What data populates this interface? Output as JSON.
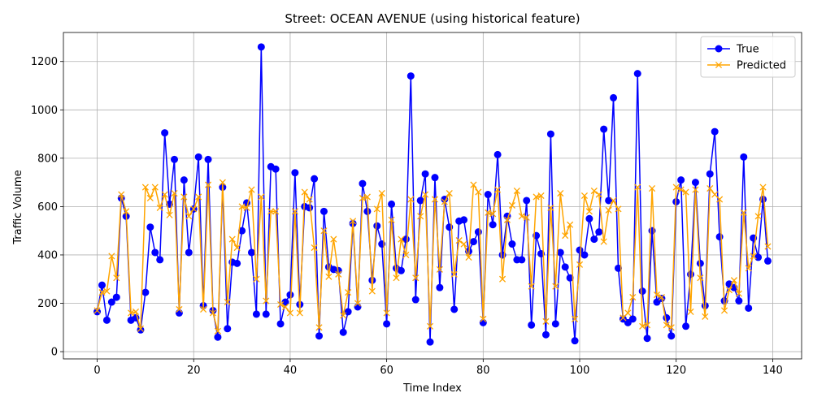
{
  "chart_data": {
    "type": "line",
    "title": "Street: OCEAN AVENUE (using historical feature)",
    "xlabel": "Time Index",
    "ylabel": "Traffic Volume",
    "xlim": [
      -7,
      146
    ],
    "ylim": [
      -30,
      1320
    ],
    "xticks": [
      0,
      20,
      40,
      60,
      80,
      100,
      120,
      140
    ],
    "yticks": [
      0,
      200,
      400,
      600,
      800,
      1000,
      1200
    ],
    "grid": true,
    "legend_position": "top-right",
    "series": [
      {
        "name": "True",
        "color": "#0000ff",
        "marker": "circle",
        "values": [
          165,
          275,
          130,
          205,
          225,
          635,
          560,
          130,
          140,
          90,
          245,
          515,
          410,
          380,
          905,
          610,
          795,
          160,
          710,
          410,
          590,
          805,
          190,
          795,
          170,
          60,
          680,
          95,
          370,
          365,
          500,
          615,
          410,
          155,
          1260,
          155,
          765,
          755,
          115,
          205,
          235,
          740,
          195,
          600,
          595,
          715,
          65,
          580,
          350,
          340,
          335,
          80,
          165,
          530,
          185,
          695,
          580,
          295,
          520,
          445,
          115,
          610,
          345,
          335,
          465,
          1140,
          215,
          625,
          735,
          40,
          720,
          265,
          630,
          515,
          175,
          540,
          545,
          415,
          455,
          495,
          120,
          650,
          525,
          815,
          400,
          560,
          445,
          380,
          380,
          625,
          110,
          480,
          405,
          70,
          900,
          115,
          410,
          350,
          305,
          45,
          420,
          400,
          550,
          465,
          495,
          920,
          625,
          1050,
          345,
          135,
          120,
          135,
          1150,
          250,
          55,
          500,
          205,
          220,
          140,
          65,
          620,
          710,
          105,
          320,
          700,
          365,
          190,
          735,
          910,
          475,
          210,
          280,
          265,
          210,
          805,
          180,
          470,
          390,
          630,
          375
        ]
      },
      {
        "name": "Predicted",
        "color": "#ffa500",
        "marker": "x",
        "values": [
          170,
          245,
          250,
          395,
          305,
          650,
          580,
          160,
          165,
          95,
          680,
          635,
          680,
          595,
          650,
          565,
          655,
          175,
          640,
          560,
          590,
          640,
          175,
          690,
          160,
          85,
          700,
          205,
          465,
          430,
          600,
          595,
          670,
          300,
          640,
          210,
          580,
          580,
          195,
          185,
          160,
          580,
          160,
          660,
          630,
          430,
          100,
          500,
          310,
          465,
          320,
          150,
          245,
          540,
          200,
          635,
          640,
          250,
          590,
          655,
          160,
          545,
          305,
          465,
          400,
          630,
          305,
          560,
          650,
          105,
          630,
          340,
          620,
          655,
          320,
          460,
          445,
          390,
          690,
          660,
          135,
          575,
          570,
          670,
          300,
          545,
          605,
          665,
          560,
          555,
          270,
          640,
          645,
          125,
          595,
          270,
          655,
          480,
          525,
          135,
          360,
          645,
          580,
          665,
          650,
          455,
          585,
          625,
          590,
          140,
          160,
          225,
          680,
          105,
          110,
          675,
          235,
          225,
          110,
          100,
          680,
          670,
          660,
          165,
          670,
          305,
          145,
          675,
          650,
          630,
          170,
          255,
          295,
          240,
          575,
          345,
          395,
          560,
          680,
          435
        ]
      }
    ]
  }
}
